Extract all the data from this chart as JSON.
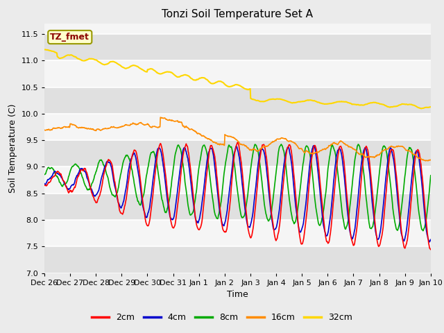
{
  "title": "Tonzi Soil Temperature Set A",
  "xlabel": "Time",
  "ylabel": "Soil Temperature (C)",
  "ylim": [
    7.0,
    11.7
  ],
  "yticks": [
    7.0,
    7.5,
    8.0,
    8.5,
    9.0,
    9.5,
    10.0,
    10.5,
    11.0,
    11.5
  ],
  "annotation_label": "TZ_fmet",
  "annotation_color": "#8B0000",
  "annotation_bg": "#FFFFCC",
  "bg_color": "#EBEBEB",
  "plot_bg_light": "#F5F5F5",
  "plot_bg_dark": "#E0E0E0",
  "legend_labels": [
    "2cm",
    "4cm",
    "8cm",
    "16cm",
    "32cm"
  ],
  "line_colors": [
    "#FF0000",
    "#0000CD",
    "#00AA00",
    "#FF8C00",
    "#FFD700"
  ],
  "line_widths": [
    1.2,
    1.2,
    1.2,
    1.2,
    1.5
  ],
  "xtick_labels": [
    "Dec 26",
    "Dec 27",
    "Dec 28",
    "Dec 29",
    "Dec 30",
    "Dec 31",
    "Jan 1",
    "Jan 2",
    "Jan 3",
    "Jan 4",
    "Jan 5",
    "Jan 6",
    "Jan 7",
    "Jan 8",
    "Jan 9",
    "Jan 10"
  ],
  "n_points": 960
}
